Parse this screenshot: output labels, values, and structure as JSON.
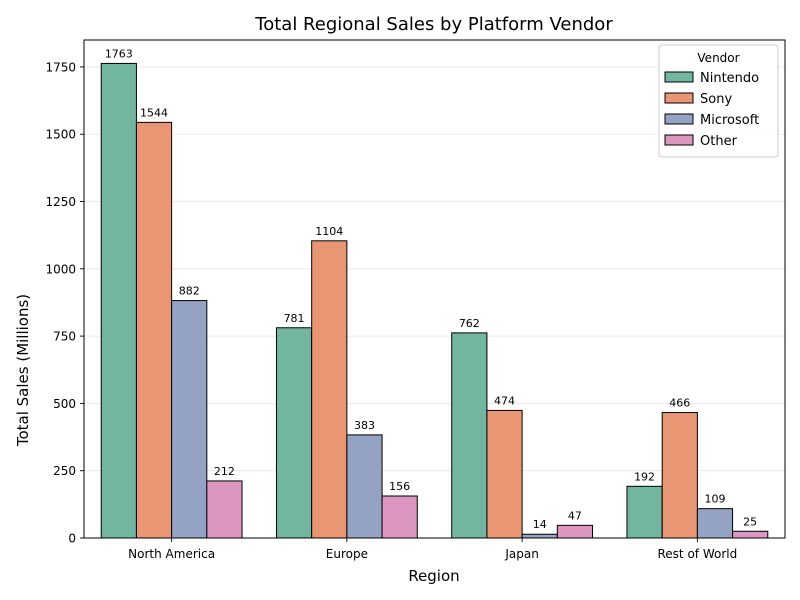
{
  "chart_data": {
    "type": "bar",
    "title": "Total Regional Sales by Platform Vendor",
    "xlabel": "Region",
    "ylabel": "Total Sales (Millions)",
    "ylim": [
      0,
      1850
    ],
    "yticks": [
      0,
      250,
      500,
      750,
      1000,
      1250,
      1500,
      1750
    ],
    "grid": "y",
    "categories": [
      "North America",
      "Europe",
      "Japan",
      "Rest of World"
    ],
    "legend": {
      "title": "Vendor",
      "position": "top-right"
    },
    "series": [
      {
        "name": "Nintendo",
        "color": "#73b6a0",
        "values": [
          1763,
          781,
          762,
          192
        ]
      },
      {
        "name": "Sony",
        "color": "#e99675",
        "values": [
          1544,
          1104,
          474,
          466
        ]
      },
      {
        "name": "Microsoft",
        "color": "#94a3c3",
        "values": [
          882,
          383,
          14,
          109
        ]
      },
      {
        "name": "Other",
        "color": "#dc97c0",
        "values": [
          212,
          156,
          47,
          25
        ]
      }
    ]
  }
}
